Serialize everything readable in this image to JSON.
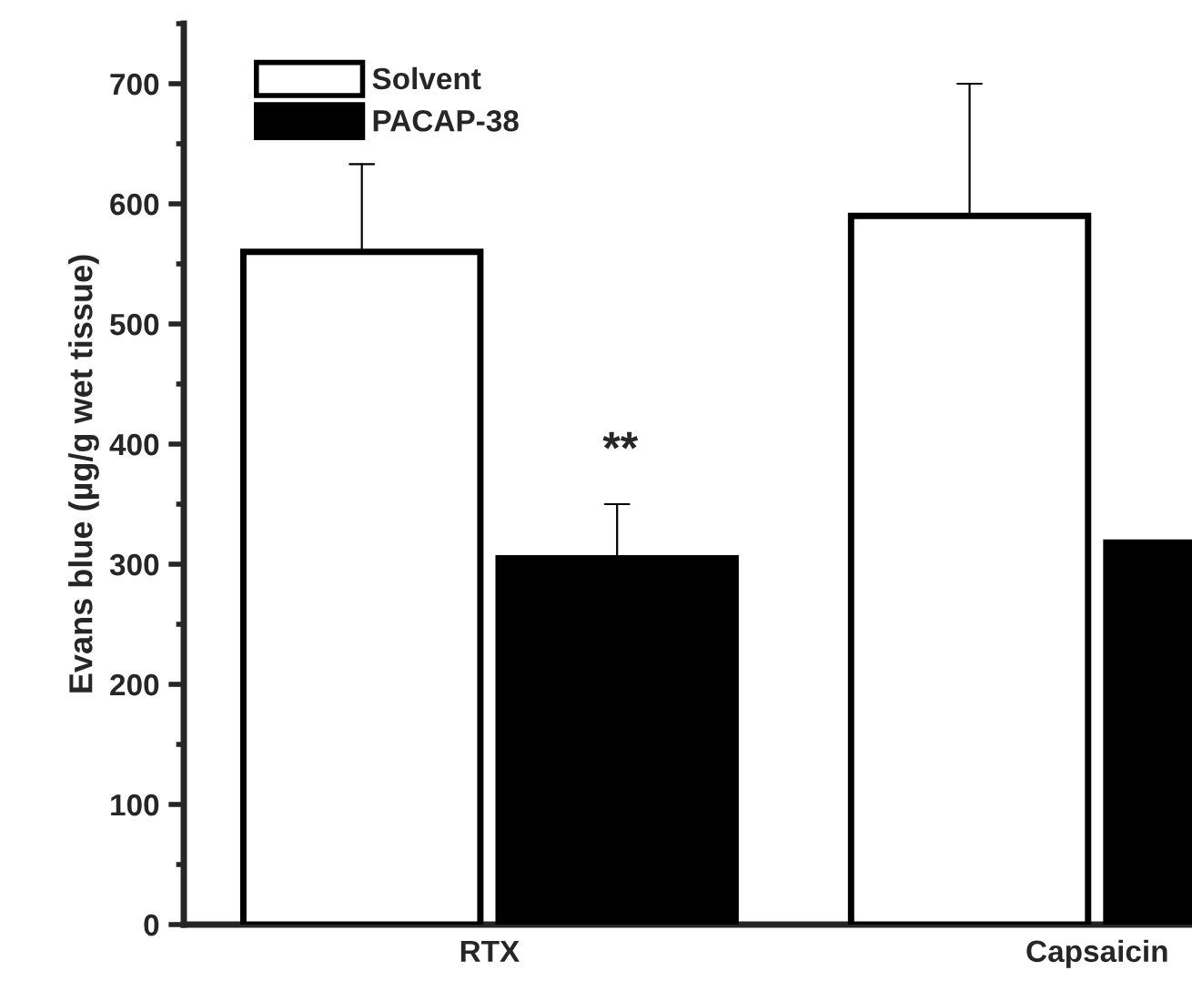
{
  "chart_data": {
    "type": "bar",
    "ylabel": "Evans blue (µg/g wet tissue)",
    "categories": [
      "RTX",
      "Capsaicin"
    ],
    "series": [
      {
        "name": "Solvent",
        "color": "#ffffff",
        "values": [
          560,
          590
        ],
        "errors": [
          73,
          110
        ]
      },
      {
        "name": "PACAP-38",
        "color": "#000000",
        "values": [
          305,
          318
        ],
        "errors": [
          45,
          null
        ]
      }
    ],
    "ylim": [
      0,
      750
    ],
    "yticks": [
      0,
      100,
      200,
      300,
      400,
      500,
      600,
      700
    ],
    "legend": "top left",
    "grid": false,
    "annotations": [
      "**"
    ]
  }
}
